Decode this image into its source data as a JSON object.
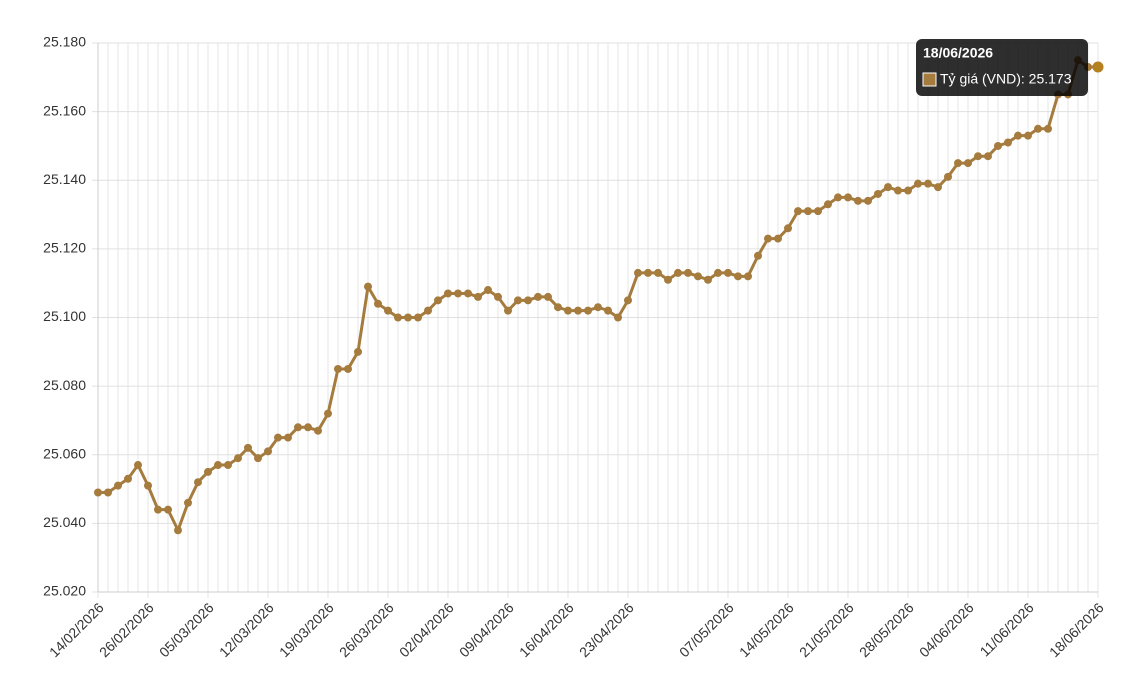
{
  "chart_data": {
    "type": "line",
    "categories": [
      "14/02/2026",
      null,
      null,
      null,
      null,
      "26/02/2026",
      null,
      null,
      null,
      null,
      null,
      "05/03/2026",
      null,
      null,
      null,
      null,
      null,
      "12/03/2026",
      null,
      null,
      null,
      null,
      null,
      "19/03/2026",
      null,
      null,
      null,
      null,
      null,
      "26/03/2026",
      null,
      null,
      null,
      null,
      null,
      "02/04/2026",
      null,
      null,
      null,
      null,
      null,
      "09/04/2026",
      null,
      null,
      null,
      null,
      null,
      "16/04/2026",
      null,
      null,
      null,
      null,
      null,
      "23/04/2026",
      null,
      null,
      null,
      null,
      null,
      null,
      null,
      null,
      null,
      "07/05/2026",
      null,
      null,
      null,
      null,
      null,
      "14/05/2026",
      null,
      null,
      null,
      null,
      null,
      "21/05/2026",
      null,
      null,
      null,
      null,
      null,
      "28/05/2026",
      null,
      null,
      null,
      null,
      null,
      "04/06/2026",
      null,
      null,
      null,
      null,
      null,
      "11/06/2026",
      null,
      null,
      null,
      null,
      null,
      null,
      "18/06/2026"
    ],
    "series": [
      {
        "name": "Tỷ giá (VND)",
        "color": "#a57b3e",
        "values": [
          25.049,
          25.049,
          25.051,
          25.053,
          25.057,
          25.051,
          25.044,
          25.044,
          25.038,
          25.046,
          25.052,
          25.055,
          25.057,
          25.057,
          25.059,
          25.062,
          25.059,
          25.061,
          25.065,
          25.065,
          25.068,
          25.068,
          25.067,
          25.072,
          25.085,
          25.085,
          25.09,
          25.109,
          25.104,
          25.102,
          25.1,
          25.1,
          25.1,
          25.102,
          25.105,
          25.107,
          25.107,
          25.107,
          25.106,
          25.108,
          25.106,
          25.102,
          25.105,
          25.105,
          25.106,
          25.106,
          25.103,
          25.102,
          25.102,
          25.102,
          25.103,
          25.102,
          25.1,
          25.105,
          25.113,
          25.113,
          25.113,
          25.111,
          25.113,
          25.113,
          25.112,
          25.111,
          25.113,
          25.113,
          25.112,
          25.112,
          25.118,
          25.123,
          25.123,
          25.126,
          25.131,
          25.131,
          25.131,
          25.133,
          25.135,
          25.135,
          25.134,
          25.134,
          25.136,
          25.138,
          25.137,
          25.137,
          25.139,
          25.139,
          25.138,
          25.141,
          25.145,
          25.145,
          25.147,
          25.147,
          25.15,
          25.151,
          25.153,
          25.153,
          25.155,
          25.155,
          25.165,
          25.165,
          25.175,
          25.173,
          25.173
        ]
      }
    ],
    "ylim": [
      25.02,
      25.18
    ],
    "yticks": [
      {
        "value": 25.02,
        "label": "25.020"
      },
      {
        "value": 25.04,
        "label": "25.040"
      },
      {
        "value": 25.06,
        "label": "25.060"
      },
      {
        "value": 25.08,
        "label": "25.080"
      },
      {
        "value": 25.1,
        "label": "25.100"
      },
      {
        "value": 25.12,
        "label": "25.120"
      },
      {
        "value": 25.14,
        "label": "25.140"
      },
      {
        "value": 25.16,
        "label": "25.160"
      },
      {
        "value": 25.18,
        "label": "25.180"
      }
    ],
    "grid": true,
    "tooltip": {
      "title": "18/06/2026",
      "text": "Tỷ giá (VND): 25.173"
    }
  }
}
